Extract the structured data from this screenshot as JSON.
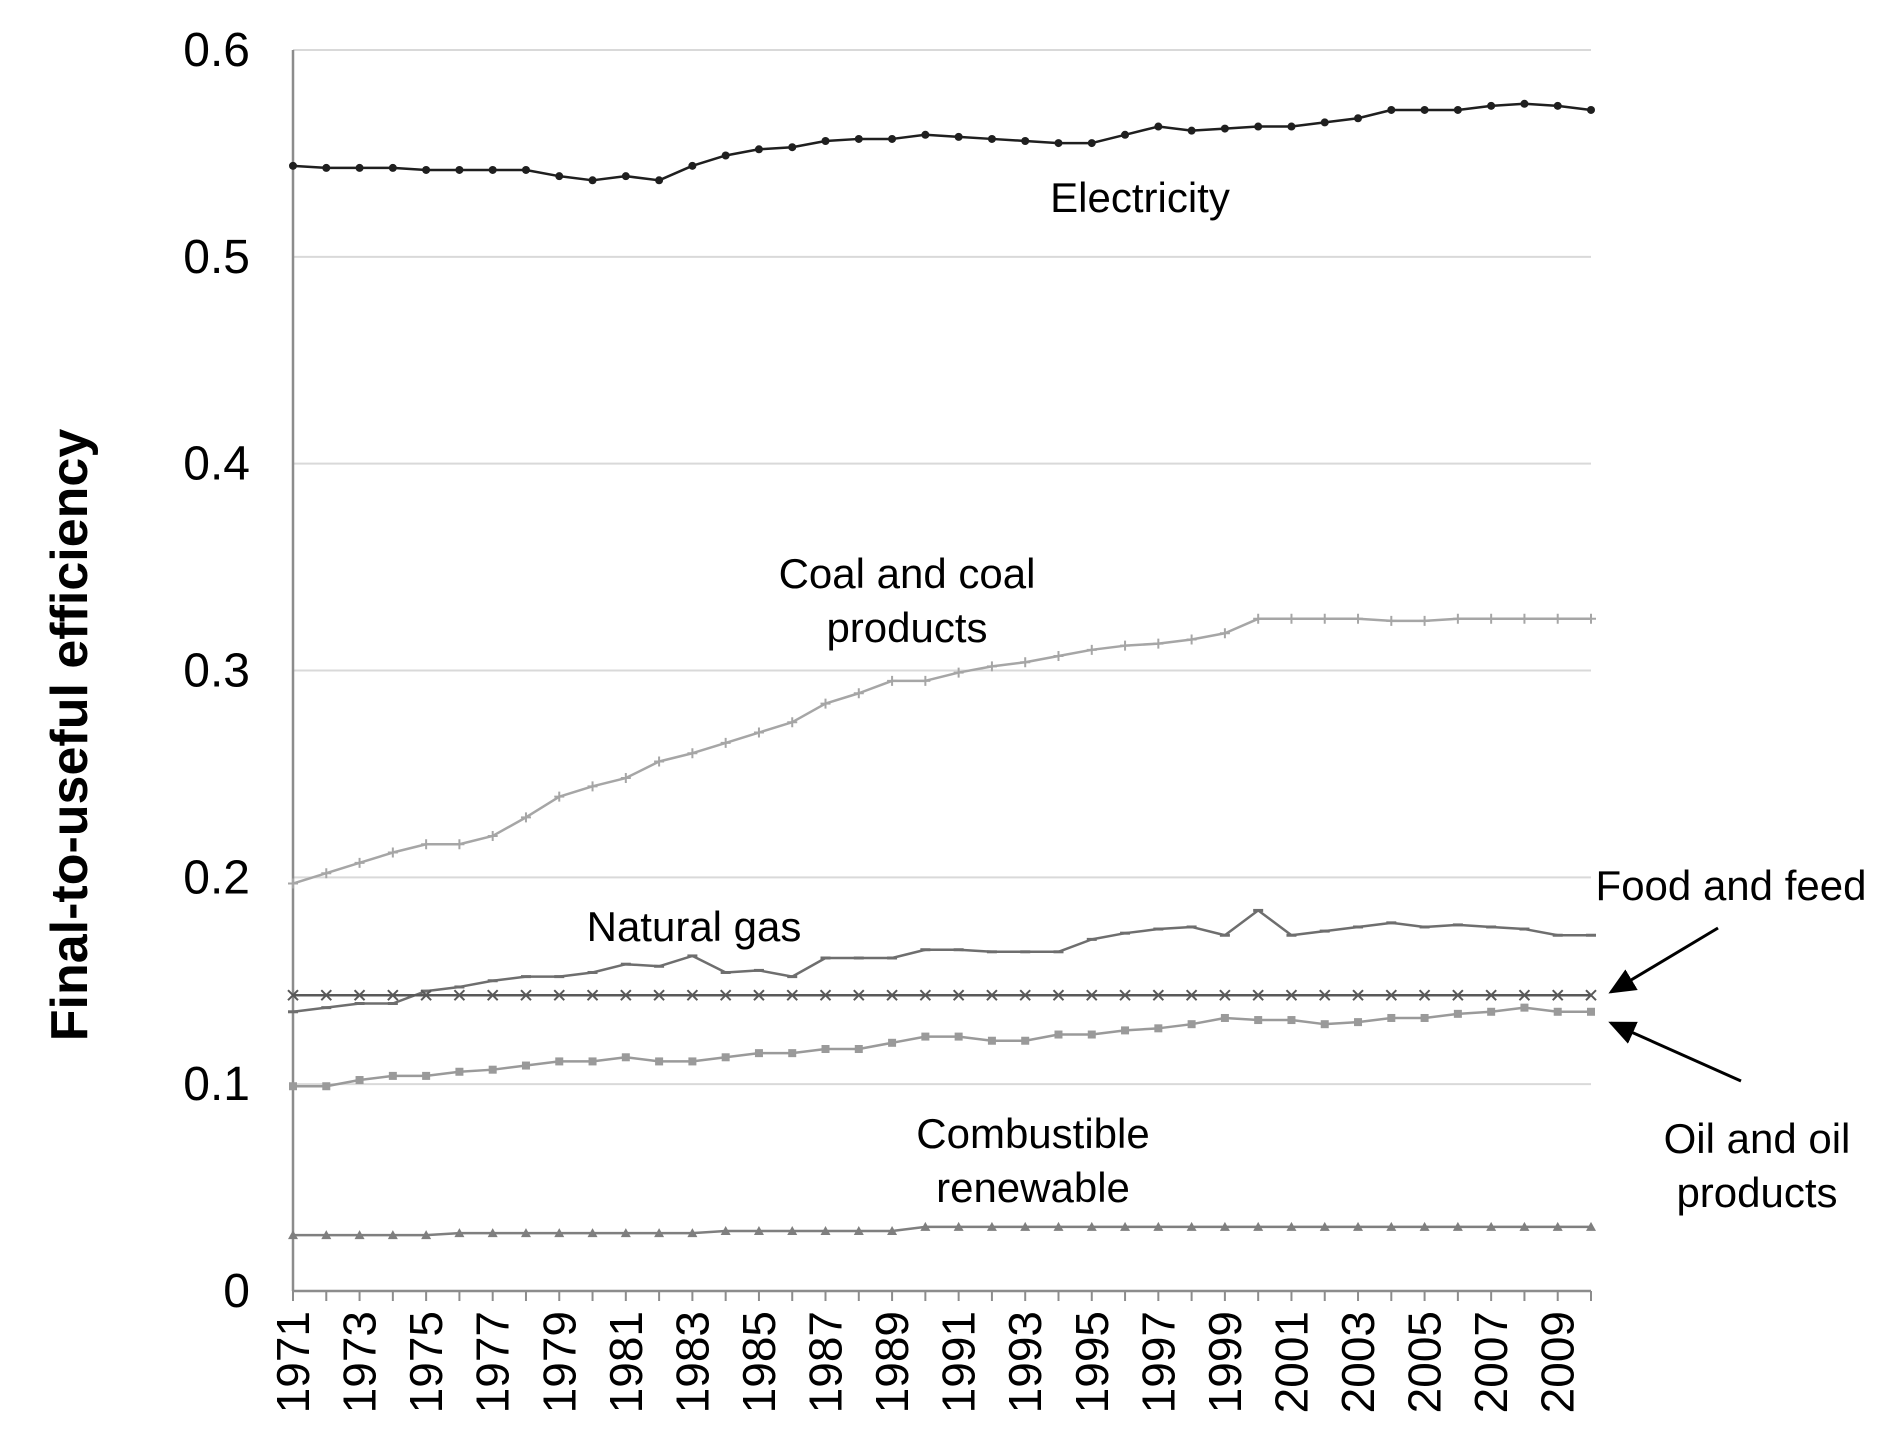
{
  "chart_data": {
    "type": "line",
    "title": "",
    "xlabel": "",
    "ylabel": "Final-to-useful efficiency",
    "ylim": [
      0,
      0.6
    ],
    "grid": true,
    "y_ticks": [
      "0",
      "0.1",
      "0.2",
      "0.3",
      "0.4",
      "0.5",
      "0.6"
    ],
    "y_tick_values": [
      0,
      0.1,
      0.2,
      0.3,
      0.4,
      0.5,
      0.6
    ],
    "x": [
      1971,
      1972,
      1973,
      1974,
      1975,
      1976,
      1977,
      1978,
      1979,
      1980,
      1981,
      1982,
      1983,
      1984,
      1985,
      1986,
      1987,
      1988,
      1989,
      1990,
      1991,
      1992,
      1993,
      1994,
      1995,
      1996,
      1997,
      1998,
      1999,
      2000,
      2001,
      2002,
      2003,
      2004,
      2005,
      2006,
      2007,
      2008,
      2009,
      2010
    ],
    "x_tick_labels": [
      "1971",
      "1973",
      "1975",
      "1977",
      "1979",
      "1981",
      "1983",
      "1985",
      "1987",
      "1989",
      "1991",
      "1993",
      "1995",
      "1997",
      "1999",
      "2001",
      "2003",
      "2005",
      "2007",
      "2009"
    ],
    "series": [
      {
        "name": "Electricity",
        "color": "#1f1f1f",
        "marker": "dot",
        "values": [
          0.544,
          0.543,
          0.543,
          0.543,
          0.542,
          0.542,
          0.542,
          0.542,
          0.539,
          0.537,
          0.539,
          0.537,
          0.544,
          0.549,
          0.552,
          0.553,
          0.556,
          0.557,
          0.557,
          0.559,
          0.558,
          0.557,
          0.556,
          0.555,
          0.555,
          0.559,
          0.563,
          0.561,
          0.562,
          0.563,
          0.563,
          0.565,
          0.567,
          0.571,
          0.571,
          0.571,
          0.573,
          0.574,
          0.573,
          0.571
        ]
      },
      {
        "name": "Coal and coal products",
        "color": "#a6a6a6",
        "marker": "plus",
        "values": [
          0.197,
          0.202,
          0.207,
          0.212,
          0.216,
          0.216,
          0.22,
          0.229,
          0.239,
          0.244,
          0.248,
          0.256,
          0.26,
          0.265,
          0.27,
          0.275,
          0.284,
          0.289,
          0.295,
          0.295,
          0.299,
          0.302,
          0.304,
          0.307,
          0.31,
          0.312,
          0.313,
          0.315,
          0.318,
          0.325,
          0.325,
          0.325,
          0.325,
          0.324,
          0.324,
          0.325,
          0.325,
          0.325,
          0.325,
          0.325
        ]
      },
      {
        "name": "Natural gas",
        "color": "#6e6e6e",
        "marker": "dash",
        "values": [
          0.135,
          0.137,
          0.139,
          0.139,
          0.145,
          0.147,
          0.15,
          0.152,
          0.152,
          0.154,
          0.158,
          0.157,
          0.162,
          0.154,
          0.155,
          0.152,
          0.161,
          0.161,
          0.161,
          0.165,
          0.165,
          0.164,
          0.164,
          0.164,
          0.17,
          0.173,
          0.175,
          0.176,
          0.172,
          0.184,
          0.172,
          0.174,
          0.176,
          0.178,
          0.176,
          0.177,
          0.176,
          0.175,
          0.172,
          0.172
        ]
      },
      {
        "name": "Food and feed",
        "color": "#595959",
        "marker": "x",
        "values": [
          0.143,
          0.143,
          0.143,
          0.143,
          0.143,
          0.143,
          0.143,
          0.143,
          0.143,
          0.143,
          0.143,
          0.143,
          0.143,
          0.143,
          0.143,
          0.143,
          0.143,
          0.143,
          0.143,
          0.143,
          0.143,
          0.143,
          0.143,
          0.143,
          0.143,
          0.143,
          0.143,
          0.143,
          0.143,
          0.143,
          0.143,
          0.143,
          0.143,
          0.143,
          0.143,
          0.143,
          0.143,
          0.143,
          0.143,
          0.143
        ]
      },
      {
        "name": "Oil and oil products",
        "color": "#9a9a9a",
        "marker": "square",
        "values": [
          0.099,
          0.099,
          0.102,
          0.104,
          0.104,
          0.106,
          0.107,
          0.109,
          0.111,
          0.111,
          0.113,
          0.111,
          0.111,
          0.113,
          0.115,
          0.115,
          0.117,
          0.117,
          0.12,
          0.123,
          0.123,
          0.121,
          0.121,
          0.124,
          0.124,
          0.126,
          0.127,
          0.129,
          0.132,
          0.131,
          0.131,
          0.129,
          0.13,
          0.132,
          0.132,
          0.134,
          0.135,
          0.137,
          0.135,
          0.135
        ]
      },
      {
        "name": "Combustible renewable",
        "color": "#7f7f7f",
        "marker": "triangle",
        "values": [
          0.027,
          0.027,
          0.027,
          0.027,
          0.027,
          0.028,
          0.028,
          0.028,
          0.028,
          0.028,
          0.028,
          0.028,
          0.028,
          0.029,
          0.029,
          0.029,
          0.029,
          0.029,
          0.029,
          0.031,
          0.031,
          0.031,
          0.031,
          0.031,
          0.031,
          0.031,
          0.031,
          0.031,
          0.031,
          0.031,
          0.031,
          0.031,
          0.031,
          0.031,
          0.031,
          0.031,
          0.031,
          0.031,
          0.031,
          0.031
        ]
      }
    ],
    "annotations": {
      "electricity": "Electricity",
      "coal_line1": "Coal and coal",
      "coal_line2": "products",
      "natural_gas": "Natural gas",
      "food_feed": "Food and feed",
      "oil_line1": "Oil and oil",
      "oil_line2": "products",
      "combustible_line1": "Combustible",
      "combustible_line2": "renewable"
    }
  }
}
